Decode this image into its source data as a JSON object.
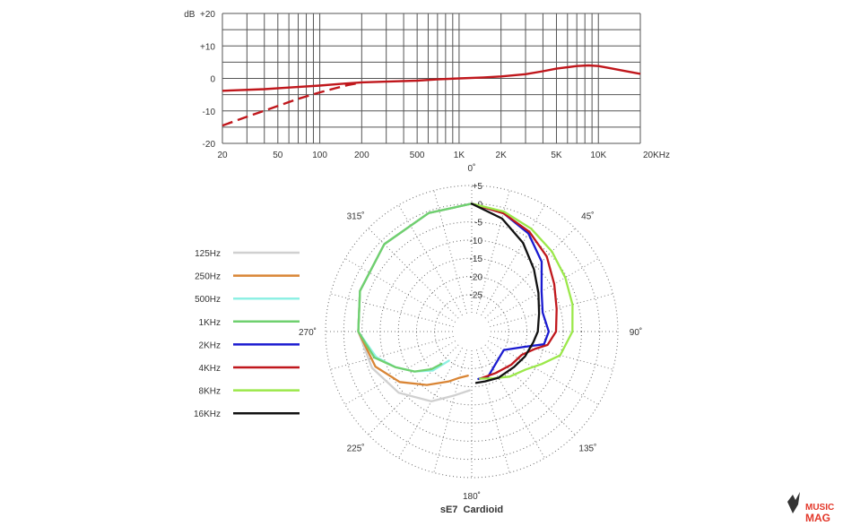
{
  "chart_data": [
    {
      "type": "line",
      "title": "",
      "xlabel": "",
      "ylabel": "",
      "x_scale": "log",
      "xlim": [
        20,
        20000
      ],
      "ylim": [
        -20,
        20
      ],
      "x_ticks": [
        20,
        50,
        100,
        200,
        500,
        1000,
        2000,
        5000,
        10000,
        20000
      ],
      "x_tick_labels": [
        "20",
        "50",
        "100",
        "200",
        "500",
        "1K",
        "2K",
        "5K",
        "10K",
        "20KHz"
      ],
      "y_ticks": [
        20,
        10,
        0,
        -10,
        -20
      ],
      "y_tick_labels": [
        "dB  +20",
        "+10",
        "0",
        "-10",
        "-20"
      ],
      "grid": true,
      "series": [
        {
          "color": "#c0171c",
          "style": "solid",
          "points": [
            [
              20,
              -3.8
            ],
            [
              40,
              -3.3
            ],
            [
              60,
              -2.8
            ],
            [
              100,
              -2.2
            ],
            [
              150,
              -1.6
            ],
            [
              200,
              -1.2
            ],
            [
              300,
              -1.0
            ],
            [
              500,
              -0.7
            ],
            [
              700,
              -0.3
            ],
            [
              1000,
              0.0
            ],
            [
              1500,
              0.3
            ],
            [
              2000,
              0.6
            ],
            [
              3000,
              1.3
            ],
            [
              4000,
              2.2
            ],
            [
              5000,
              3.0
            ],
            [
              7000,
              3.8
            ],
            [
              8500,
              4.0
            ],
            [
              10000,
              3.8
            ],
            [
              12000,
              3.2
            ],
            [
              15000,
              2.4
            ],
            [
              20000,
              1.4
            ]
          ]
        },
        {
          "color": "#c0171c",
          "style": "dashed",
          "points": [
            [
              20,
              -14.5
            ],
            [
              30,
              -11.8
            ],
            [
              50,
              -8.5
            ],
            [
              70,
              -6.3
            ],
            [
              100,
              -4.3
            ],
            [
              130,
              -3.0
            ],
            [
              160,
              -2.0
            ],
            [
              200,
              -1.3
            ]
          ]
        }
      ]
    },
    {
      "type": "polar",
      "title": "sE7  Cardioid",
      "angle_labels": [
        {
          "angle": 0,
          "text": "0˚"
        },
        {
          "angle": 45,
          "text": "45˚"
        },
        {
          "angle": 90,
          "text": "90˚"
        },
        {
          "angle": 135,
          "text": "135˚"
        },
        {
          "angle": 180,
          "text": "180˚"
        },
        {
          "angle": 225,
          "text": "225˚"
        },
        {
          "angle": 270,
          "text": "270˚"
        },
        {
          "angle": 315,
          "text": "315˚"
        }
      ],
      "r_ticks": [
        5,
        0,
        -5,
        -10,
        -15,
        -20,
        -25
      ],
      "r_tick_labels": [
        "+5",
        "0",
        "-5",
        "-10",
        "-15",
        "-20",
        "-25"
      ],
      "rlim": [
        -30,
        5
      ],
      "grid": "dotted",
      "legend_position": "left",
      "series": [
        {
          "name": "125Hz",
          "color": "#d0d0d0",
          "side": "left",
          "points": [
            [
              0,
              0
            ],
            [
              20,
              -0.5
            ],
            [
              45,
              -1.2
            ],
            [
              70,
              -2.5
            ],
            [
              90,
              -4
            ],
            [
              110,
              -6
            ],
            [
              130,
              -9
            ],
            [
              150,
              -13
            ],
            [
              165,
              -17
            ],
            [
              178,
              -19
            ]
          ]
        },
        {
          "name": "250Hz",
          "color": "#d98535",
          "side": "left",
          "points": [
            [
              0,
              0
            ],
            [
              20,
              -0.5
            ],
            [
              45,
              -1.2
            ],
            [
              70,
              -2.5
            ],
            [
              90,
              -4
            ],
            [
              110,
              -7
            ],
            [
              125,
              -11
            ],
            [
              140,
              -16
            ],
            [
              155,
              -20
            ],
            [
              165,
              -22
            ],
            [
              175,
              -23
            ]
          ]
        },
        {
          "name": "500Hz",
          "color": "#8ef0e4",
          "side": "left",
          "points": [
            [
              0,
              0
            ],
            [
              20,
              -0.5
            ],
            [
              45,
              -1.2
            ],
            [
              70,
              -2.5
            ],
            [
              90,
              -4
            ],
            [
              105,
              -8
            ],
            [
              115,
              -12
            ],
            [
              125,
              -16
            ],
            [
              135,
              -20
            ],
            [
              142,
              -25
            ]
          ]
        },
        {
          "name": "1KHz",
          "color": "#6fd06f",
          "side": "left",
          "points": [
            [
              0,
              0
            ],
            [
              20,
              -0.5
            ],
            [
              45,
              -1.2
            ],
            [
              70,
              -2.5
            ],
            [
              90,
              -4
            ],
            [
              105,
              -7.5
            ],
            [
              115,
              -12
            ],
            [
              125,
              -16
            ],
            [
              133,
              -20
            ],
            [
              137,
              -23
            ]
          ]
        },
        {
          "name": "2KHz",
          "color": "#1a1ad0",
          "side": "right",
          "points": [
            [
              0,
              0
            ],
            [
              15,
              -1.5
            ],
            [
              30,
              -4
            ],
            [
              45,
              -8
            ],
            [
              60,
              -13
            ],
            [
              75,
              -15
            ],
            [
              90,
              -14
            ],
            [
              100,
              -15
            ],
            [
              106,
              -20
            ],
            [
              120,
              -25
            ],
            [
              160,
              -22
            ],
            [
              172,
              -22
            ]
          ]
        },
        {
          "name": "4KHz",
          "color": "#c0171c",
          "side": "right",
          "points": [
            [
              0,
              0
            ],
            [
              15,
              -1.5
            ],
            [
              30,
              -3.5
            ],
            [
              45,
              -6
            ],
            [
              60,
              -9
            ],
            [
              75,
              -11
            ],
            [
              90,
              -12
            ],
            [
              100,
              -14
            ],
            [
              105,
              -17
            ],
            [
              115,
              -20
            ],
            [
              130,
              -21
            ],
            [
              150,
              -22
            ],
            [
              170,
              -22
            ]
          ]
        },
        {
          "name": "8KHz",
          "color": "#9be84a",
          "side": "right",
          "points": [
            [
              0,
              0
            ],
            [
              15,
              -1
            ],
            [
              30,
              -2.5
            ],
            [
              45,
              -4
            ],
            [
              60,
              -5.5
            ],
            [
              75,
              -6.5
            ],
            [
              90,
              -7.5
            ],
            [
              105,
              -10
            ],
            [
              115,
              -14
            ],
            [
              125,
              -17
            ],
            [
              140,
              -19
            ],
            [
              155,
              -21
            ],
            [
              170,
              -22
            ]
          ]
        },
        {
          "name": "16KHz",
          "color": "#111111",
          "side": "right",
          "points": [
            [
              0,
              0
            ],
            [
              15,
              -3
            ],
            [
              30,
              -7
            ],
            [
              45,
              -11
            ],
            [
              60,
              -14
            ],
            [
              75,
              -16
            ],
            [
              90,
              -17
            ],
            [
              100,
              -18
            ],
            [
              115,
              -19
            ],
            [
              130,
              -20
            ],
            [
              150,
              -20.5
            ],
            [
              165,
              -21
            ],
            [
              175,
              -21
            ]
          ]
        }
      ]
    }
  ],
  "watermark": {
    "text": "MUSIC MAG"
  }
}
